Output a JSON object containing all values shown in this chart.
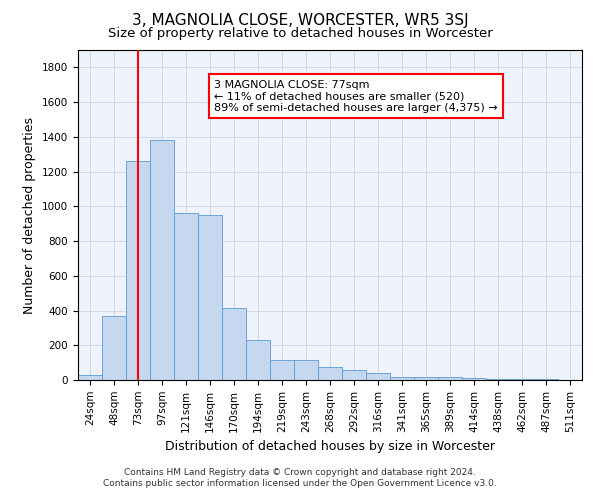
{
  "title": "3, MAGNOLIA CLOSE, WORCESTER, WR5 3SJ",
  "subtitle": "Size of property relative to detached houses in Worcester",
  "xlabel": "Distribution of detached houses by size in Worcester",
  "ylabel": "Number of detached properties",
  "footnote1": "Contains HM Land Registry data © Crown copyright and database right 2024.",
  "footnote2": "Contains public sector information licensed under the Open Government Licence v3.0.",
  "annotation_line1": "3 MAGNOLIA CLOSE: 77sqm",
  "annotation_line2": "← 11% of detached houses are smaller (520)",
  "annotation_line3": "89% of semi-detached houses are larger (4,375) →",
  "bar_color": "#c5d8ef",
  "bar_edge_color": "#5b9bd5",
  "red_line_x": 2,
  "categories": [
    "24sqm",
    "48sqm",
    "73sqm",
    "97sqm",
    "121sqm",
    "146sqm",
    "170sqm",
    "194sqm",
    "219sqm",
    "243sqm",
    "268sqm",
    "292sqm",
    "316sqm",
    "341sqm",
    "365sqm",
    "389sqm",
    "414sqm",
    "438sqm",
    "462sqm",
    "487sqm",
    "511sqm"
  ],
  "values": [
    30,
    370,
    1260,
    1380,
    960,
    950,
    415,
    230,
    115,
    115,
    75,
    60,
    40,
    20,
    20,
    20,
    10,
    5,
    5,
    5,
    0
  ],
  "ylim": [
    0,
    1900
  ],
  "yticks": [
    0,
    200,
    400,
    600,
    800,
    1000,
    1200,
    1400,
    1600,
    1800
  ],
  "background_color": "#eef2fb",
  "grid_color": "#d0d8ee",
  "title_fontsize": 11,
  "subtitle_fontsize": 9.5,
  "axis_label_fontsize": 9,
  "tick_fontsize": 7.5,
  "annotation_fontsize": 8,
  "footnote_fontsize": 6.5
}
